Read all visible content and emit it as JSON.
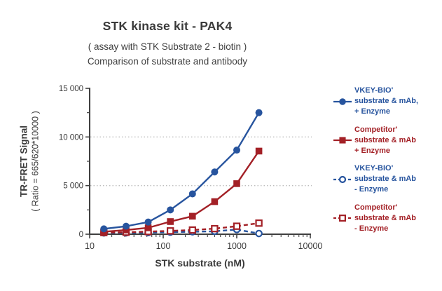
{
  "header": {
    "title": "STK kinase kit - PAK4",
    "subtitle1": "( assay with STK Substrate 2 - biotin )",
    "subtitle2": "Comparison of substrate and antibody"
  },
  "colors": {
    "blue": "#27549E",
    "red": "#A32026",
    "axis": "#404040",
    "text": "#3A3A3A",
    "grid": "#BDBDBD"
  },
  "legend": {
    "items": [
      {
        "lines": [
          "VKEY-BIO'",
          "substrate & mAb,",
          "+ Enzyme"
        ],
        "color": "#27549E",
        "marker": "circle",
        "fill": "solid",
        "line": "solid"
      },
      {
        "lines": [
          "Competitor'",
          "substrate & mAb",
          "+ Enzyme"
        ],
        "color": "#A32026",
        "marker": "square",
        "fill": "solid",
        "line": "solid"
      },
      {
        "lines": [
          "VKEY-BIO'",
          "substrate & mAb",
          "- Enzyme"
        ],
        "color": "#27549E",
        "marker": "circle",
        "fill": "open",
        "line": "dashed"
      },
      {
        "lines": [
          "Competitor'",
          "substrate & mAb",
          "- Enzyme"
        ],
        "color": "#A32026",
        "marker": "square",
        "fill": "open",
        "line": "dashed"
      }
    ]
  },
  "chart_data": {
    "type": "line",
    "title": "STK kinase kit - PAK4",
    "xlabel": "STK substrate (nM)",
    "ylabel": "TR-FRET Signal",
    "ylabel2": "( Ratio = 665/620*10000 )",
    "xscale": "log",
    "xlim": [
      10,
      10000
    ],
    "ylim": [
      0,
      15000
    ],
    "x": [
      15.6,
      31.25,
      62.5,
      125,
      250,
      500,
      1000,
      2000
    ],
    "series": [
      {
        "name": "VKEY-BIO' substrate & mAb, + Enzyme",
        "color": "#27549E",
        "marker": "circle",
        "fill": "solid",
        "line": "solid",
        "values": [
          550,
          820,
          1250,
          2500,
          4150,
          6400,
          8650,
          12500
        ]
      },
      {
        "name": "Competitor' substrate & mAb + Enzyme",
        "color": "#A32026",
        "marker": "square",
        "fill": "solid",
        "line": "solid",
        "values": [
          260,
          430,
          660,
          1300,
          1850,
          3350,
          5200,
          8550
        ]
      },
      {
        "name": "VKEY-BIO' substrate & mAb - Enzyme",
        "color": "#27549E",
        "marker": "circle",
        "fill": "open",
        "line": "dashed",
        "values": [
          130,
          140,
          170,
          210,
          250,
          300,
          480,
          70
        ]
      },
      {
        "name": "Competitor' substrate & mAb - Enzyme",
        "color": "#A32026",
        "marker": "square",
        "fill": "open",
        "line": "dashed",
        "values": [
          170,
          200,
          270,
          340,
          430,
          570,
          820,
          1140
        ]
      }
    ],
    "yticks": {
      "major": [
        0,
        5000,
        10000,
        15000
      ],
      "labels": [
        "0",
        "5 000",
        "10 000",
        "15 000"
      ],
      "minor": [
        2500,
        7500,
        12500
      ]
    },
    "xticks": {
      "major": [
        10,
        100,
        1000,
        10000
      ],
      "labels": [
        "10",
        "100",
        "1000",
        "10000"
      ]
    },
    "gridlines": [
      5000,
      10000
    ],
    "legend_position": "right"
  }
}
